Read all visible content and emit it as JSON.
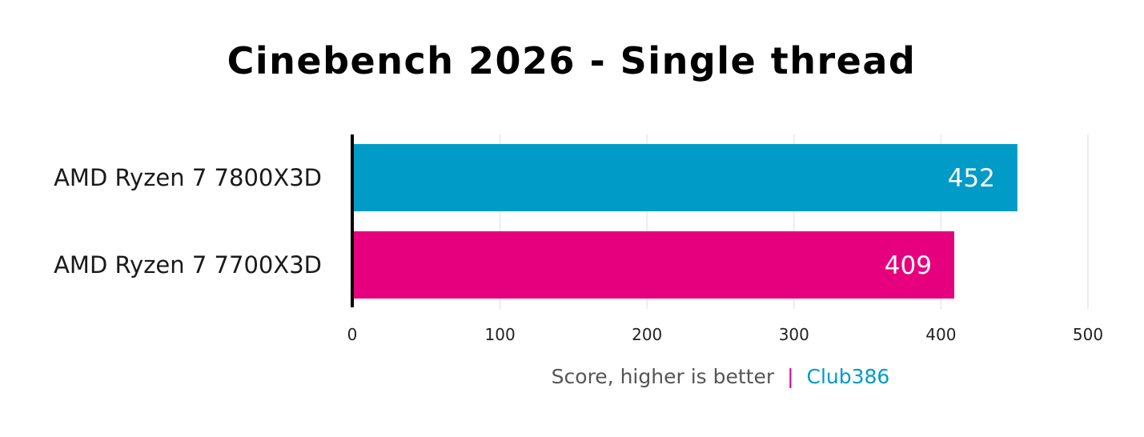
{
  "chart_data": {
    "type": "bar",
    "orientation": "horizontal",
    "title": "Cinebench 2026 - Single thread",
    "categories": [
      "AMD Ryzen 7 7800X3D",
      "AMD Ryzen 7 7700X3D"
    ],
    "values": [
      452,
      409
    ],
    "bar_colors": [
      "#009bc6",
      "#e6007e"
    ],
    "xlim": [
      0,
      500
    ],
    "xticks": [
      0,
      100,
      200,
      300,
      400,
      500
    ],
    "xlabel": "",
    "ylabel": "",
    "grid": "vertical",
    "legend": "none"
  },
  "caption": {
    "text": "Score, higher is better",
    "separator": "|",
    "brand": "Club386",
    "text_color": "#555555",
    "separator_color": "#e6007e",
    "brand_color": "#009bc6"
  }
}
